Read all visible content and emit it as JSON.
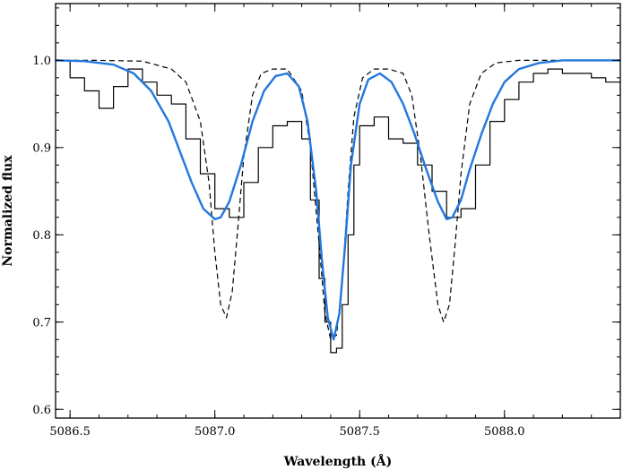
{
  "chart_data": {
    "type": "line",
    "title": "",
    "xlabel": "Wavelength (Å)",
    "ylabel": "Normalized flux",
    "xlim": [
      5086.45,
      5088.4
    ],
    "ylim": [
      0.59,
      1.065
    ],
    "x_ticks": [
      5086.5,
      5087.0,
      5087.5,
      5088.0
    ],
    "x_tick_labels": [
      "5086.5",
      "5087.0",
      "5087.5",
      "5088.0"
    ],
    "y_ticks": [
      0.6,
      0.7,
      0.8,
      0.9,
      1.0
    ],
    "y_tick_labels": [
      "0.6",
      "0.7",
      "0.8",
      "0.9",
      "1.0"
    ],
    "grid": false,
    "legend": "none",
    "series": [
      {
        "style": "histogram",
        "color": "#000000",
        "x": [
          5086.45,
          5086.5,
          5086.55,
          5086.6,
          5086.65,
          5086.7,
          5086.75,
          5086.8,
          5086.85,
          5086.9,
          5086.95,
          5087.0,
          5087.05,
          5087.1,
          5087.15,
          5087.2,
          5087.25,
          5087.3,
          5087.33,
          5087.36,
          5087.38,
          5087.4,
          5087.42,
          5087.44,
          5087.46,
          5087.48,
          5087.5,
          5087.55,
          5087.6,
          5087.65,
          5087.7,
          5087.75,
          5087.8,
          5087.85,
          5087.9,
          5087.95,
          5088.0,
          5088.05,
          5088.1,
          5088.15,
          5088.2,
          5088.25,
          5088.3,
          5088.35,
          5088.4
        ],
        "y": [
          1.0,
          0.98,
          0.965,
          0.945,
          0.97,
          0.99,
          0.975,
          0.96,
          0.95,
          0.91,
          0.87,
          0.83,
          0.82,
          0.86,
          0.9,
          0.925,
          0.93,
          0.91,
          0.84,
          0.75,
          0.7,
          0.665,
          0.67,
          0.72,
          0.8,
          0.88,
          0.925,
          0.935,
          0.91,
          0.905,
          0.88,
          0.85,
          0.82,
          0.83,
          0.88,
          0.93,
          0.955,
          0.975,
          0.985,
          0.99,
          0.985,
          0.985,
          0.98,
          0.975,
          0.965
        ]
      },
      {
        "style": "dashed",
        "color": "#000000",
        "x": [
          5086.45,
          5086.6,
          5086.75,
          5086.85,
          5086.9,
          5086.95,
          5086.98,
          5087.0,
          5087.02,
          5087.04,
          5087.06,
          5087.08,
          5087.1,
          5087.13,
          5087.16,
          5087.2,
          5087.25,
          5087.3,
          5087.33,
          5087.36,
          5087.38,
          5087.4,
          5087.42,
          5087.44,
          5087.46,
          5087.48,
          5087.51,
          5087.55,
          5087.6,
          5087.65,
          5087.68,
          5087.71,
          5087.74,
          5087.77,
          5087.79,
          5087.81,
          5087.83,
          5087.85,
          5087.88,
          5087.92,
          5087.97,
          5088.05,
          5088.2,
          5088.4
        ],
        "y": [
          1.0,
          1.0,
          0.999,
          0.99,
          0.975,
          0.93,
          0.86,
          0.78,
          0.72,
          0.705,
          0.735,
          0.81,
          0.89,
          0.96,
          0.985,
          0.99,
          0.99,
          0.965,
          0.9,
          0.79,
          0.71,
          0.68,
          0.685,
          0.745,
          0.85,
          0.935,
          0.98,
          0.99,
          0.99,
          0.985,
          0.96,
          0.89,
          0.8,
          0.72,
          0.7,
          0.72,
          0.79,
          0.87,
          0.95,
          0.985,
          0.997,
          1.0,
          1.0,
          1.0
        ]
      },
      {
        "style": "solid",
        "color": "#2277dd",
        "x": [
          5086.45,
          5086.55,
          5086.65,
          5086.72,
          5086.78,
          5086.84,
          5086.88,
          5086.92,
          5086.96,
          5087.0,
          5087.02,
          5087.05,
          5087.09,
          5087.13,
          5087.17,
          5087.21,
          5087.25,
          5087.29,
          5087.32,
          5087.35,
          5087.37,
          5087.39,
          5087.41,
          5087.43,
          5087.45,
          5087.47,
          5087.5,
          5087.53,
          5087.57,
          5087.61,
          5087.65,
          5087.69,
          5087.73,
          5087.77,
          5087.8,
          5087.82,
          5087.85,
          5087.88,
          5087.92,
          5087.96,
          5088.0,
          5088.05,
          5088.12,
          5088.2,
          5088.3,
          5088.4
        ],
        "y": [
          1.0,
          0.999,
          0.995,
          0.985,
          0.965,
          0.93,
          0.895,
          0.86,
          0.83,
          0.818,
          0.82,
          0.838,
          0.88,
          0.93,
          0.965,
          0.982,
          0.985,
          0.97,
          0.93,
          0.85,
          0.77,
          0.705,
          0.68,
          0.71,
          0.79,
          0.88,
          0.95,
          0.978,
          0.985,
          0.975,
          0.95,
          0.915,
          0.875,
          0.838,
          0.818,
          0.82,
          0.84,
          0.875,
          0.915,
          0.95,
          0.975,
          0.99,
          0.997,
          1.0,
          1.0,
          1.0
        ]
      }
    ]
  }
}
